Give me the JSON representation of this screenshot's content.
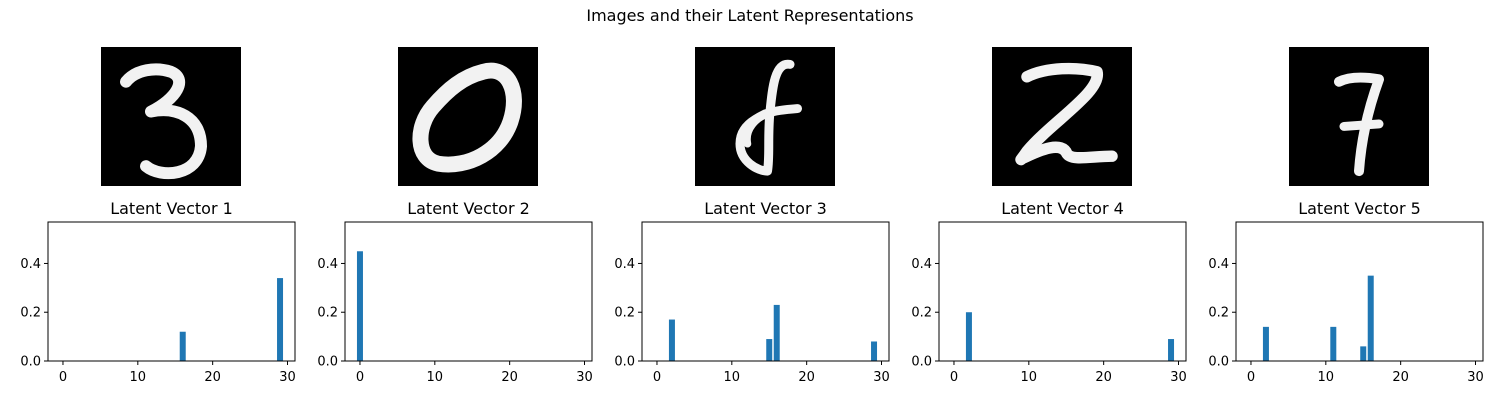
{
  "figure": {
    "title": "Images and their Latent Representations"
  },
  "images": [
    {
      "digit": "3"
    },
    {
      "digit": "0"
    },
    {
      "digit": "8"
    },
    {
      "digit": "2"
    },
    {
      "digit": "7"
    }
  ],
  "chart_data": [
    {
      "type": "bar",
      "title": "Latent Vector 1",
      "xlabel": "",
      "ylabel": "",
      "xlim": [
        -2,
        31
      ],
      "ylim": [
        0,
        0.57
      ],
      "xticks": [
        0,
        10,
        20,
        30
      ],
      "yticks": [
        0.0,
        0.2,
        0.4
      ],
      "color": "#1f77b4",
      "grid": false,
      "x": [
        16,
        29
      ],
      "values": [
        0.12,
        0.34
      ]
    },
    {
      "type": "bar",
      "title": "Latent Vector 2",
      "xlabel": "",
      "ylabel": "",
      "xlim": [
        -2,
        31
      ],
      "ylim": [
        0,
        0.57
      ],
      "xticks": [
        0,
        10,
        20,
        30
      ],
      "yticks": [
        0.0,
        0.2,
        0.4
      ],
      "color": "#1f77b4",
      "grid": false,
      "x": [
        0
      ],
      "values": [
        0.45
      ]
    },
    {
      "type": "bar",
      "title": "Latent Vector 3",
      "xlabel": "",
      "ylabel": "",
      "xlim": [
        -2,
        31
      ],
      "ylim": [
        0,
        0.57
      ],
      "xticks": [
        0,
        10,
        20,
        30
      ],
      "yticks": [
        0.0,
        0.2,
        0.4
      ],
      "color": "#1f77b4",
      "grid": false,
      "x": [
        2,
        15,
        16,
        29
      ],
      "values": [
        0.17,
        0.09,
        0.23,
        0.08
      ]
    },
    {
      "type": "bar",
      "title": "Latent Vector 4",
      "xlabel": "",
      "ylabel": "",
      "xlim": [
        -2,
        31
      ],
      "ylim": [
        0,
        0.57
      ],
      "xticks": [
        0,
        10,
        20,
        30
      ],
      "yticks": [
        0.0,
        0.2,
        0.4
      ],
      "color": "#1f77b4",
      "grid": false,
      "x": [
        2,
        29
      ],
      "values": [
        0.2,
        0.09
      ]
    },
    {
      "type": "bar",
      "title": "Latent Vector 5",
      "xlabel": "",
      "ylabel": "",
      "xlim": [
        -2,
        31
      ],
      "ylim": [
        0,
        0.57
      ],
      "xticks": [
        0,
        10,
        20,
        30
      ],
      "yticks": [
        0.0,
        0.2,
        0.4
      ],
      "color": "#1f77b4",
      "grid": false,
      "x": [
        2,
        11,
        15,
        16
      ],
      "values": [
        0.14,
        0.14,
        0.06,
        0.35
      ]
    }
  ]
}
